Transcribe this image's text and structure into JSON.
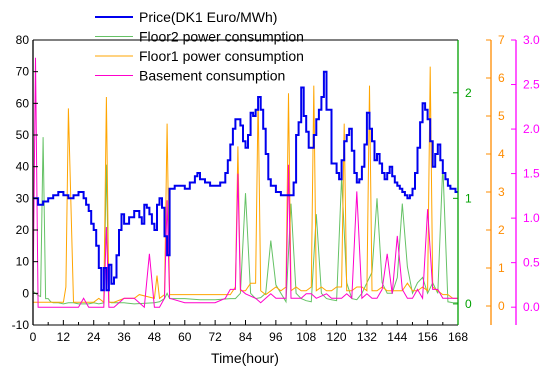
{
  "chart_data": {
    "type": "line",
    "xlabel": "Time(hour)",
    "x_ticks": [
      0,
      12,
      24,
      36,
      48,
      60,
      72,
      84,
      96,
      108,
      120,
      132,
      144,
      156,
      168
    ],
    "xlim": [
      0,
      168
    ],
    "grid": false,
    "legend_position": "top-left",
    "axes": {
      "left": {
        "series": "Price(DK1 Euro/MWh)",
        "ylim": [
          -10,
          80
        ],
        "ticks": [
          -10,
          0,
          10,
          20,
          30,
          40,
          50,
          60,
          70,
          80
        ],
        "color": "#000000"
      },
      "right1": {
        "series": "Floor2 power consumption",
        "ylim": [
          -0.2,
          2.5
        ],
        "ticks": [
          0,
          1,
          2
        ],
        "color": "#00a000"
      },
      "right2": {
        "series": "Floor1 power consumption",
        "ylim": [
          -0.5,
          7
        ],
        "ticks": [
          0,
          1,
          2,
          3,
          4,
          5,
          6,
          7
        ],
        "color": "#ff8c00"
      },
      "right3": {
        "series": "Basement consumption",
        "ylim": [
          -0.2,
          3.0
        ],
        "ticks": [
          0.0,
          0.5,
          1.0,
          1.5,
          2.0,
          2.5,
          3.0
        ],
        "color": "#ff00ff"
      }
    },
    "series": [
      {
        "name": "Price(DK1 Euro/MWh)",
        "axis": "left",
        "color": "#0000ee",
        "step": true,
        "width": 2,
        "x": [
          0,
          2,
          4,
          6,
          8,
          10,
          12,
          14,
          16,
          18,
          20,
          21,
          22,
          23,
          24,
          25,
          26,
          27,
          28,
          29,
          30,
          31,
          32,
          33,
          34,
          35,
          36,
          38,
          40,
          42,
          43,
          44,
          45,
          46,
          47,
          48,
          49,
          50,
          51,
          52,
          53,
          54,
          56,
          58,
          60,
          62,
          64,
          65,
          66,
          68,
          70,
          72,
          74,
          76,
          77,
          78,
          79,
          80,
          81,
          82,
          83,
          84,
          85,
          86,
          87,
          88,
          89,
          90,
          91,
          92,
          93,
          94,
          96,
          98,
          100,
          102,
          103,
          104,
          105,
          106,
          107,
          108,
          109,
          110,
          111,
          112,
          113,
          114,
          115,
          116,
          118,
          120,
          121,
          122,
          123,
          124,
          125,
          126,
          127,
          128,
          129,
          130,
          131,
          132,
          133,
          134,
          135,
          136,
          137,
          138,
          139,
          140,
          141,
          142,
          143,
          144,
          145,
          146,
          147,
          148,
          149,
          150,
          151,
          152,
          153,
          154,
          155,
          156,
          157,
          158,
          159,
          160,
          161,
          162,
          163,
          164,
          165,
          166,
          167,
          168
        ],
        "y": [
          30,
          28,
          29,
          30,
          31,
          32,
          31,
          30,
          31,
          32,
          30,
          28,
          26,
          22,
          20,
          15,
          8,
          1,
          8,
          1,
          9,
          3,
          5,
          12,
          20,
          25,
          22,
          24,
          26,
          24,
          22,
          28,
          27,
          25,
          22,
          20,
          28,
          30,
          27,
          18,
          12,
          33,
          34,
          34,
          33,
          35,
          37,
          38,
          36,
          35,
          34,
          34,
          35,
          38,
          42,
          47,
          52,
          55,
          55,
          53,
          48,
          46,
          50,
          57,
          56,
          58,
          62,
          58,
          52,
          44,
          36,
          34,
          32,
          31,
          31,
          31,
          35,
          50,
          54,
          65,
          56,
          51,
          46,
          46,
          50,
          55,
          58,
          62,
          70,
          58,
          41,
          38,
          36,
          42,
          48,
          50,
          52,
          45,
          38,
          35,
          36,
          40,
          47,
          57,
          52,
          48,
          42,
          44,
          41,
          38,
          36,
          38,
          40,
          37,
          35,
          34,
          33,
          32,
          31,
          30,
          31,
          33,
          38,
          46,
          54,
          60,
          58,
          55,
          48,
          40,
          44,
          47,
          42,
          38,
          36,
          34,
          33,
          33,
          32,
          32
        ]
      },
      {
        "name": "Floor2 power consumption",
        "axis": "right1",
        "color": "#66c266",
        "step": false,
        "width": 1,
        "x": [
          0,
          2,
          3,
          4,
          5,
          6,
          7,
          8,
          10,
          12,
          14,
          16,
          18,
          20,
          22,
          24,
          26,
          28,
          29,
          30,
          31,
          32,
          36,
          40,
          48,
          50,
          52,
          53,
          54,
          60,
          66,
          72,
          78,
          80,
          82,
          84,
          86,
          88,
          90,
          92,
          94,
          96,
          98,
          100,
          102,
          104,
          106,
          108,
          110,
          112,
          114,
          116,
          118,
          120,
          122,
          124,
          126,
          128,
          130,
          132,
          134,
          136,
          138,
          140,
          142,
          144,
          146,
          148,
          150,
          152,
          154,
          156,
          158,
          160,
          162,
          164,
          166,
          168
        ],
        "y": [
          0.12,
          0.08,
          0.07,
          1.58,
          0.05,
          0.05,
          0.02,
          0.01,
          0.01,
          0.0,
          0.01,
          0.01,
          0.0,
          0.0,
          0.0,
          0.01,
          0.0,
          0.01,
          1.32,
          0.02,
          0.01,
          0.01,
          0.01,
          0.0,
          0.01,
          0.02,
          0.05,
          0.1,
          0.05,
          0.05,
          0.04,
          0.04,
          0.05,
          0.05,
          0.1,
          1.05,
          0.1,
          0.05,
          0.06,
          0.1,
          0.6,
          0.18,
          0.1,
          0.02,
          0.95,
          0.1,
          0.05,
          0.03,
          0.02,
          0.85,
          0.1,
          0.05,
          0.04,
          0.03,
          1.2,
          0.2,
          0.05,
          0.04,
          0.1,
          0.2,
          0.3,
          1.0,
          0.2,
          0.1,
          0.1,
          0.25,
          0.95,
          0.35,
          0.1,
          0.2,
          0.25,
          0.1,
          0.2,
          0.1,
          1.32,
          0.02,
          0.01,
          0.01
        ]
      },
      {
        "name": "Floor1 power consumption",
        "axis": "right2",
        "color": "#ffa500",
        "step": false,
        "width": 1,
        "x": [
          0,
          2,
          4,
          6,
          8,
          10,
          12,
          13,
          14,
          16,
          18,
          20,
          22,
          24,
          26,
          28,
          29,
          30,
          31,
          32,
          36,
          40,
          42,
          48,
          49,
          50,
          52,
          53,
          54,
          60,
          66,
          72,
          78,
          80,
          81,
          82,
          84,
          86,
          88,
          89,
          90,
          92,
          94,
          96,
          98,
          100,
          101,
          102,
          104,
          106,
          108,
          110,
          111,
          112,
          114,
          116,
          118,
          120,
          122,
          123,
          124,
          126,
          128,
          130,
          132,
          133,
          134,
          136,
          138,
          140,
          142,
          144,
          146,
          148,
          150,
          152,
          154,
          156,
          157,
          158,
          160,
          162,
          164,
          166,
          168
        ],
        "y": [
          0.1,
          0.1,
          0.1,
          0.1,
          0.1,
          0.1,
          0.1,
          0.5,
          5.2,
          0.1,
          0.1,
          0.1,
          0.1,
          0.1,
          0.2,
          0.1,
          5.5,
          0.1,
          0.1,
          0.1,
          0.2,
          0.2,
          0.3,
          0.2,
          0.8,
          0.2,
          0.3,
          4.8,
          0.3,
          0.3,
          0.3,
          0.3,
          0.3,
          0.5,
          4.2,
          0.4,
          0.4,
          0.6,
          0.6,
          5.5,
          0.4,
          0.3,
          0.4,
          0.5,
          0.4,
          0.5,
          5.6,
          0.4,
          0.5,
          0.4,
          0.4,
          0.5,
          5.8,
          0.4,
          0.5,
          0.4,
          0.4,
          0.5,
          0.5,
          4.8,
          0.4,
          0.4,
          0.5,
          0.5,
          0.4,
          5.8,
          0.4,
          0.4,
          0.5,
          0.4,
          0.4,
          0.4,
          0.4,
          0.6,
          0.4,
          0.4,
          0.5,
          0.4,
          6.3,
          0.5,
          0.4,
          0.3,
          0.3,
          0.2,
          0.2
        ]
      },
      {
        "name": "Basement consumption",
        "axis": "right3",
        "color": "#ff00cc",
        "step": false,
        "width": 1,
        "x": [
          0,
          1,
          2,
          4,
          6,
          8,
          10,
          12,
          14,
          16,
          18,
          20,
          22,
          24,
          26,
          28,
          29,
          30,
          32,
          36,
          40,
          44,
          46,
          48,
          50,
          52,
          53,
          54,
          60,
          66,
          72,
          76,
          78,
          80,
          81,
          82,
          84,
          88,
          90,
          92,
          94,
          96,
          98,
          100,
          101,
          102,
          106,
          108,
          110,
          112,
          116,
          118,
          120,
          122,
          124,
          126,
          128,
          130,
          132,
          134,
          136,
          138,
          140,
          142,
          144,
          146,
          148,
          150,
          152,
          154,
          156,
          158,
          160,
          162,
          164,
          166,
          168
        ],
        "y": [
          0.05,
          2.8,
          0.0,
          0.0,
          0.0,
          0.0,
          0.0,
          0.0,
          0.0,
          0.0,
          0.0,
          0.1,
          0.0,
          0.0,
          0.0,
          0.0,
          0.9,
          0.0,
          0.0,
          0.1,
          0.1,
          0.0,
          0.6,
          0.0,
          0.0,
          0.1,
          1.2,
          0.1,
          0.05,
          0.05,
          0.05,
          0.1,
          0.2,
          0.2,
          1.5,
          0.2,
          0.15,
          0.1,
          0.05,
          0.1,
          0.15,
          0.1,
          0.1,
          0.1,
          1.6,
          0.1,
          0.1,
          0.15,
          0.15,
          0.1,
          0.15,
          0.1,
          0.1,
          0.1,
          0.15,
          0.1,
          1.3,
          0.1,
          0.15,
          0.1,
          0.1,
          0.2,
          0.6,
          0.15,
          0.8,
          0.2,
          0.1,
          0.1,
          0.2,
          0.1,
          1.1,
          0.2,
          0.2,
          0.1,
          0.1,
          0.1,
          0.1
        ]
      }
    ]
  }
}
